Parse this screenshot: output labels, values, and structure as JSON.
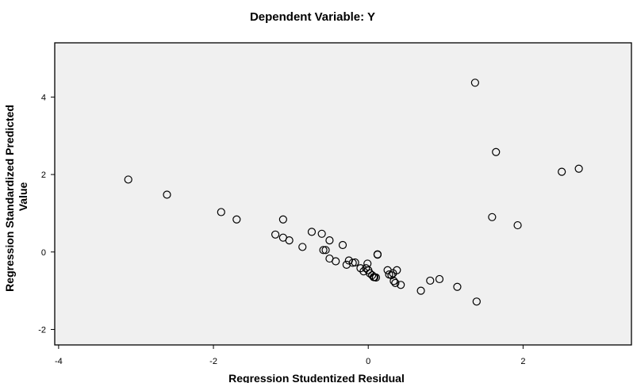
{
  "chart_data": {
    "type": "scatter",
    "title": "Dependent Variable: Y",
    "xlabel": "Regression Studentized Residual",
    "ylabel": "Regression Standardized Predicted Value",
    "ylabel_lines": [
      "Regression Standardized Predicted",
      "Value"
    ],
    "xlim": [
      -4.05,
      3.4
    ],
    "ylim": [
      -2.4,
      5.4
    ],
    "xticks": [
      -4,
      -2,
      0,
      2
    ],
    "yticks": [
      -2,
      0,
      2,
      4
    ],
    "grid": false,
    "legend": "none",
    "x": [
      -3.1,
      -2.6,
      -1.9,
      -1.7,
      -1.1,
      -1.2,
      -1.1,
      -1.02,
      -0.85,
      -0.73,
      -0.6,
      -0.58,
      -0.55,
      -0.5,
      -0.5,
      -0.42,
      -0.33,
      -0.28,
      -0.25,
      -0.2,
      -0.17,
      -0.1,
      -0.06,
      -0.03,
      -0.01,
      0.0,
      0.02,
      0.05,
      0.07,
      0.08,
      0.1,
      0.12,
      0.12,
      0.25,
      0.27,
      0.3,
      0.32,
      0.33,
      0.35,
      0.37,
      0.42,
      0.68,
      0.8,
      0.92,
      1.15,
      1.38,
      1.4,
      1.6,
      1.65,
      1.93,
      2.5,
      2.72
    ],
    "y": [
      1.87,
      1.48,
      1.03,
      0.84,
      0.84,
      0.45,
      0.37,
      0.3,
      0.13,
      0.52,
      0.47,
      0.05,
      0.05,
      0.3,
      -0.17,
      -0.24,
      0.18,
      -0.33,
      -0.22,
      -0.28,
      -0.27,
      -0.42,
      -0.5,
      -0.42,
      -0.3,
      -0.47,
      -0.55,
      -0.6,
      -0.65,
      -0.65,
      -0.66,
      -0.06,
      -0.07,
      -0.47,
      -0.58,
      -0.6,
      -0.55,
      -0.75,
      -0.8,
      -0.47,
      -0.85,
      -1.0,
      -0.74,
      -0.7,
      -0.9,
      4.37,
      -1.28,
      0.9,
      2.58,
      0.69,
      2.07,
      2.15
    ]
  }
}
